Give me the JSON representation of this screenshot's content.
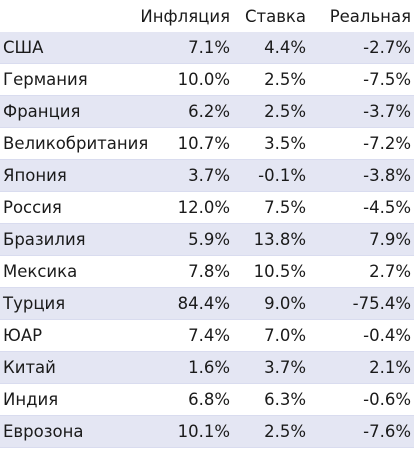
{
  "colors": {
    "row_shade": "#e4e6f3",
    "divider": "#d9dcef",
    "text": "#1a1a1a"
  },
  "table": {
    "headers": {
      "country": "",
      "inflation": "Инфляция",
      "rate": "Ставка",
      "real": "Реальная"
    },
    "rows": [
      {
        "country": "США",
        "inflation": "7.1%",
        "rate": "4.4%",
        "real": "-2.7%"
      },
      {
        "country": "Германия",
        "inflation": "10.0%",
        "rate": "2.5%",
        "real": "-7.5%"
      },
      {
        "country": "Франция",
        "inflation": "6.2%",
        "rate": "2.5%",
        "real": "-3.7%"
      },
      {
        "country": "Великобритания",
        "inflation": "10.7%",
        "rate": "3.5%",
        "real": "-7.2%"
      },
      {
        "country": "Япония",
        "inflation": "3.7%",
        "rate": "-0.1%",
        "real": "-3.8%"
      },
      {
        "country": "Россия",
        "inflation": "12.0%",
        "rate": "7.5%",
        "real": "-4.5%"
      },
      {
        "country": "Бразилия",
        "inflation": "5.9%",
        "rate": "13.8%",
        "real": "7.9%"
      },
      {
        "country": "Мексика",
        "inflation": "7.8%",
        "rate": "10.5%",
        "real": "2.7%"
      },
      {
        "country": "Турция",
        "inflation": "84.4%",
        "rate": "9.0%",
        "real": "-75.4%"
      },
      {
        "country": "ЮАР",
        "inflation": "7.4%",
        "rate": "7.0%",
        "real": "-0.4%"
      },
      {
        "country": "Китай",
        "inflation": "1.6%",
        "rate": "3.7%",
        "real": "2.1%"
      },
      {
        "country": "Индия",
        "inflation": "6.8%",
        "rate": "6.3%",
        "real": "-0.6%"
      },
      {
        "country": "Еврозона",
        "inflation": "10.1%",
        "rate": "2.5%",
        "real": "-7.6%"
      }
    ]
  }
}
